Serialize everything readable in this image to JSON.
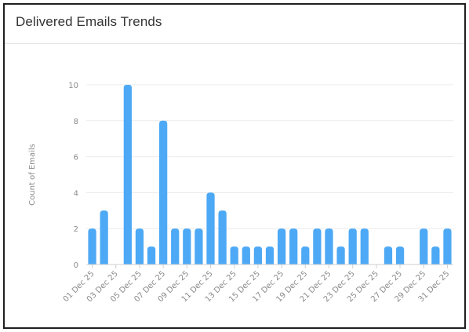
{
  "card": {
    "title": "Delivered Emails Trends"
  },
  "chart_data": {
    "type": "bar",
    "title": "Delivered Emails Trends",
    "xlabel": "",
    "ylabel": "Count of Emails",
    "ylim": [
      0,
      10
    ],
    "yticks": [
      0,
      2,
      4,
      6,
      8,
      10
    ],
    "grid": true,
    "bar_color": "#4da9f5",
    "categories": [
      "01 Dec 25",
      "02 Dec 25",
      "03 Dec 25",
      "04 Dec 25",
      "05 Dec 25",
      "06 Dec 25",
      "07 Dec 25",
      "08 Dec 25",
      "09 Dec 25",
      "10 Dec 25",
      "11 Dec 25",
      "12 Dec 25",
      "13 Dec 25",
      "14 Dec 25",
      "15 Dec 25",
      "16 Dec 25",
      "17 Dec 25",
      "18 Dec 25",
      "19 Dec 25",
      "20 Dec 25",
      "21 Dec 25",
      "22 Dec 25",
      "23 Dec 25",
      "24 Dec 25",
      "25 Dec 25",
      "26 Dec 25",
      "27 Dec 25",
      "28 Dec 25",
      "29 Dec 25",
      "30 Dec 25",
      "31 Dec 25"
    ],
    "x_tick_labels": [
      "01 Dec 25",
      "03 Dec 25",
      "05 Dec 25",
      "07 Dec 25",
      "09 Dec 25",
      "11 Dec 25",
      "13 Dec 25",
      "15 Dec 25",
      "17 Dec 25",
      "19 Dec 25",
      "21 Dec 25",
      "23 Dec 25",
      "25 Dec 25",
      "27 Dec 25",
      "29 Dec 25",
      "31 Dec 25"
    ],
    "values": [
      2,
      3,
      0,
      10,
      2,
      1,
      8,
      2,
      2,
      2,
      4,
      3,
      1,
      1,
      1,
      1,
      2,
      2,
      1,
      2,
      2,
      1,
      2,
      2,
      0,
      1,
      1,
      0,
      2,
      1,
      2
    ]
  }
}
